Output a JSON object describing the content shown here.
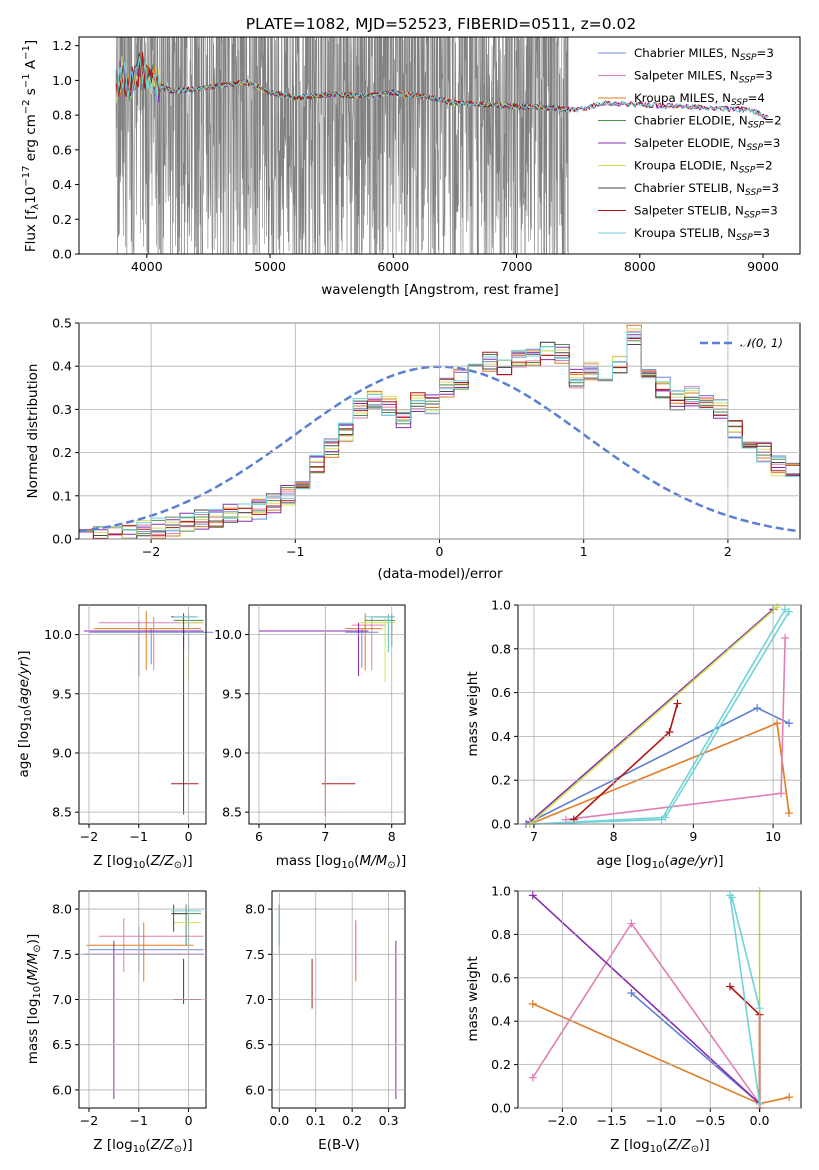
{
  "figure_title": "PLATE=1082, MJD=52523, FIBERID=0511, z=0.02",
  "colors": {
    "data": "#808080",
    "grid": "#b0b0b0",
    "models": [
      "#6e8ad8",
      "#e27eb4",
      "#e07b21",
      "#4f8f4f",
      "#8a2bb0",
      "#d4e05a",
      "#4a4a4a",
      "#b01616",
      "#6fd3d8"
    ],
    "gaussian": "#5b7fd4",
    "weights": [
      "#5b7fd4",
      "#e07b21",
      "#e27eb4",
      "#8a2bb0",
      "#c8e64f",
      "#b01616",
      "#6fd3d8"
    ]
  },
  "chart_data": [
    {
      "id": "spectrum",
      "type": "line",
      "ylabel": "Flux [f$_\\lambda$10$^{-17}$ erg cm$^{-2}$ s$^{-1}$ A$^{-1}$]",
      "ylabel_parts": [
        "Flux [f",
        "λ",
        "10",
        "−17",
        " erg cm",
        "−2",
        " s",
        "−1",
        " A",
        "−1",
        "]"
      ],
      "xlabel": "wavelength [Angstrom, rest frame]",
      "xlim": [
        3450,
        9300
      ],
      "ylim": [
        0,
        1.25
      ],
      "xticks": [
        4000,
        5000,
        6000,
        7000,
        8000,
        9000
      ],
      "yticks": [
        "0.0",
        "0.2",
        "0.4",
        "0.6",
        "0.8",
        "1.0",
        "1.2"
      ],
      "data_range": [
        3750,
        7420
      ],
      "model_continuum": [
        [
          3750,
          0.92
        ],
        [
          3800,
          1.05
        ],
        [
          3850,
          0.95
        ],
        [
          3900,
          1.0
        ],
        [
          3950,
          1.08
        ],
        [
          4000,
          1.02
        ],
        [
          4100,
          0.97
        ],
        [
          4200,
          0.94
        ],
        [
          4400,
          0.95
        ],
        [
          4600,
          0.97
        ],
        [
          4800,
          0.99
        ],
        [
          5000,
          0.93
        ],
        [
          5200,
          0.9
        ],
        [
          5500,
          0.92
        ],
        [
          5800,
          0.91
        ],
        [
          6000,
          0.93
        ],
        [
          6300,
          0.9
        ],
        [
          6500,
          0.87
        ],
        [
          6800,
          0.86
        ],
        [
          7000,
          0.85
        ],
        [
          7300,
          0.84
        ],
        [
          7500,
          0.83
        ],
        [
          7700,
          0.87
        ],
        [
          8000,
          0.86
        ],
        [
          8300,
          0.85
        ],
        [
          8600,
          0.84
        ],
        [
          8900,
          0.83
        ],
        [
          9050,
          0.78
        ]
      ],
      "legend": [
        {
          "label": "Chabrier MILES, N",
          "sub": "SSP",
          "suffix": "=3"
        },
        {
          "label": "Salpeter MILES, N",
          "sub": "SSP",
          "suffix": "=3"
        },
        {
          "label": "Kroupa MILES, N",
          "sub": "SSP",
          "suffix": "=4"
        },
        {
          "label": "Chabrier ELODIE, N",
          "sub": "SSP",
          "suffix": "=2"
        },
        {
          "label": "Salpeter ELODIE, N",
          "sub": "SSP",
          "suffix": "=3"
        },
        {
          "label": "Kroupa ELODIE, N",
          "sub": "SSP",
          "suffix": "=2"
        },
        {
          "label": "Chabrier STELIB, N",
          "sub": "SSP",
          "suffix": "=3"
        },
        {
          "label": "Salpeter STELIB, N",
          "sub": "SSP",
          "suffix": "=3"
        },
        {
          "label": "Kroupa STELIB, N",
          "sub": "SSP",
          "suffix": "=3"
        }
      ]
    },
    {
      "id": "residuals",
      "type": "step",
      "xlabel": "(data-model)/error",
      "ylabel": "Normed distribution",
      "xlim": [
        -2.5,
        2.5
      ],
      "ylim": [
        0,
        0.5
      ],
      "xticks": [
        "−2",
        "−1",
        "0",
        "1",
        "2"
      ],
      "xtick_values": [
        -2,
        -1,
        0,
        1,
        2
      ],
      "yticks": [
        "0.0",
        "0.1",
        "0.2",
        "0.3",
        "0.4",
        "0.5"
      ],
      "bin_width": 0.1,
      "bin_start": -2.5,
      "base_hist": [
        0.005,
        0.008,
        0.012,
        0.015,
        0.02,
        0.025,
        0.03,
        0.04,
        0.045,
        0.05,
        0.06,
        0.065,
        0.07,
        0.08,
        0.1,
        0.13,
        0.17,
        0.21,
        0.25,
        0.3,
        0.32,
        0.31,
        0.28,
        0.32,
        0.31,
        0.35,
        0.37,
        0.4,
        0.41,
        0.39,
        0.42,
        0.42,
        0.44,
        0.43,
        0.37,
        0.39,
        0.38,
        0.4,
        0.47,
        0.38,
        0.35,
        0.32,
        0.33,
        0.32,
        0.3,
        0.25,
        0.23,
        0.2,
        0.17,
        0.16,
        0.13,
        0.11,
        0.09,
        0.09,
        0.08,
        0.07,
        0.06,
        0.05,
        0.05,
        0.045,
        0.035,
        0.035,
        0.03,
        0.025,
        0.025,
        0.02,
        0.02,
        0.015,
        0.01,
        0.01,
        0.01,
        0.01,
        0.01,
        0.01,
        0.01,
        0.01,
        0.01,
        0.01,
        0.01,
        0.01
      ],
      "legend_label": "𝒩(0, 1)"
    },
    {
      "id": "age_vs_Z",
      "type": "errorbar",
      "xlabel_parts": [
        "Z [log",
        "10",
        "(",
        "Z/Z",
        "⊙",
        ")]"
      ],
      "ylabel_parts": [
        "age  [log",
        "10",
        "(",
        "age/yr",
        ")]"
      ],
      "xlim": [
        -2.2,
        0.35
      ],
      "ylim": [
        8.4,
        10.25
      ],
      "xticks": [
        "−2",
        "−1",
        "0"
      ],
      "xtick_values": [
        -2,
        -1,
        0
      ],
      "yticks": [
        "8.5",
        "9.0",
        "9.5",
        "10.0"
      ],
      "ytick_values": [
        8.5,
        9.0,
        9.5,
        10.0
      ],
      "points": [
        {
          "c": 0,
          "x": -0.75,
          "y": 10.02,
          "xe": [
            -2.0,
            0.5
          ],
          "ye": [
            9.75,
            10.05
          ]
        },
        {
          "c": 1,
          "x": -0.7,
          "y": 10.1,
          "xe": [
            -1.8,
            0.3
          ],
          "ye": [
            9.7,
            10.15
          ]
        },
        {
          "c": 2,
          "x": -0.85,
          "y": 10.05,
          "xe": [
            -1.9,
            0.25
          ],
          "ye": [
            9.7,
            10.2
          ]
        },
        {
          "c": 3,
          "x": 0.0,
          "y": 10.12,
          "xe": [
            -0.3,
            0.3
          ],
          "ye": [
            9.85,
            10.18
          ]
        },
        {
          "c": 4,
          "x": -1.0,
          "y": 10.03,
          "xe": [
            -2.1,
            0.3
          ],
          "ye": [
            9.65,
            10.12
          ]
        },
        {
          "c": 5,
          "x": 0.0,
          "y": 10.1,
          "xe": [
            -0.2,
            0.3
          ],
          "ye": [
            9.6,
            10.15
          ]
        },
        {
          "c": 6,
          "x": -0.1,
          "y": 10.15,
          "xe": [
            -0.35,
            0.15
          ],
          "ye": [
            9.9,
            10.18
          ]
        },
        {
          "c": 7,
          "x": -0.1,
          "y": 8.74,
          "xe": [
            -0.35,
            0.2
          ],
          "ye": [
            8.48,
            10.05
          ]
        },
        {
          "c": 8,
          "x": 0.0,
          "y": 10.15,
          "xe": [
            -0.3,
            0.2
          ],
          "ye": [
            9.85,
            10.17
          ]
        }
      ]
    },
    {
      "id": "age_vs_mass",
      "type": "errorbar",
      "xlabel_parts": [
        "mass [log",
        "10",
        "(",
        "M/M",
        "⊙",
        ")]"
      ],
      "xlim": [
        5.85,
        8.2
      ],
      "ylim": [
        8.4,
        10.25
      ],
      "xticks": [
        "6",
        "7",
        "8"
      ],
      "xtick_values": [
        6,
        7,
        8
      ],
      "yticks": [
        "8.5",
        "9.0",
        "9.5",
        "10.0"
      ],
      "ytick_values": [
        8.5,
        9.0,
        9.5,
        10.0
      ],
      "points": [
        {
          "c": 0,
          "x": 7.55,
          "y": 10.02,
          "xe": [
            7.3,
            7.8
          ],
          "ye": [
            9.72,
            10.05
          ]
        },
        {
          "c": 1,
          "x": 7.7,
          "y": 10.08,
          "xe": [
            7.4,
            7.9
          ],
          "ye": [
            9.7,
            10.15
          ]
        },
        {
          "c": 2,
          "x": 7.6,
          "y": 10.05,
          "xe": [
            7.3,
            7.85
          ],
          "ye": [
            9.7,
            10.18
          ]
        },
        {
          "c": 3,
          "x": 7.95,
          "y": 10.12,
          "xe": [
            7.6,
            8.05
          ],
          "ye": [
            9.85,
            10.17
          ]
        },
        {
          "c": 4,
          "x": 7.5,
          "y": 10.03,
          "xe": [
            6.0,
            7.65
          ],
          "ye": [
            9.65,
            10.1
          ]
        },
        {
          "c": 5,
          "x": 7.9,
          "y": 10.1,
          "xe": [
            7.5,
            8.05
          ],
          "ye": [
            9.6,
            10.15
          ]
        },
        {
          "c": 6,
          "x": 8.0,
          "y": 10.15,
          "xe": [
            7.7,
            8.05
          ],
          "ye": [
            9.9,
            10.17
          ]
        },
        {
          "c": 7,
          "x": 7.0,
          "y": 8.74,
          "xe": [
            6.95,
            7.45
          ],
          "ye": [
            8.47,
            10.02
          ]
        },
        {
          "c": 8,
          "x": 7.95,
          "y": 10.15,
          "xe": [
            7.6,
            8.05
          ],
          "ye": [
            9.85,
            10.16
          ]
        }
      ]
    },
    {
      "id": "weight_vs_age",
      "type": "line",
      "xlabel_parts": [
        "age  [log",
        "10",
        "(",
        "age/yr",
        ")]"
      ],
      "ylabel": "mass weight",
      "xlim": [
        6.8,
        10.35
      ],
      "ylim": [
        0,
        1
      ],
      "xticks": [
        "7",
        "8",
        "9",
        "10"
      ],
      "xtick_values": [
        7,
        8,
        9,
        10
      ],
      "yticks": [
        "0.0",
        "0.2",
        "0.4",
        "0.6",
        "0.8",
        "1.0"
      ],
      "ytick_values": [
        0,
        0.2,
        0.4,
        0.6,
        0.8,
        1.0
      ],
      "series": [
        {
          "c": 0,
          "x": [
            6.9,
            9.8,
            10.2
          ],
          "y": [
            0.0,
            0.53,
            0.46
          ]
        },
        {
          "c": 1,
          "x": [
            6.95,
            10.05,
            10.2
          ],
          "y": [
            0.0,
            0.46,
            0.05
          ]
        },
        {
          "c": 2,
          "x": [
            7.4,
            10.1,
            10.15
          ],
          "y": [
            0.02,
            0.14,
            0.85
          ]
        },
        {
          "c": 3,
          "x": [
            6.95,
            10.0
          ],
          "y": [
            0.01,
            0.98
          ]
        },
        {
          "c": 4,
          "x": [
            6.95,
            10.05
          ],
          "y": [
            0.0,
            0.99
          ]
        },
        {
          "c": 5,
          "x": [
            7.5,
            8.7,
            8.8
          ],
          "y": [
            0.02,
            0.42,
            0.55
          ]
        },
        {
          "c": 6,
          "x": [
            7.0,
            8.6,
            10.15
          ],
          "y": [
            0.0,
            0.02,
            0.98
          ]
        },
        {
          "c": 6,
          "x": [
            7.0,
            8.65,
            10.2
          ],
          "y": [
            0.0,
            0.03,
            0.97
          ]
        }
      ]
    },
    {
      "id": "mass_vs_Z",
      "type": "errorbar",
      "xlabel_parts": [
        "Z [log",
        "10",
        "(",
        "Z/Z",
        "⊙",
        ")]"
      ],
      "ylabel_parts": [
        "mass [log",
        "10",
        "(",
        "M/M",
        "⊙",
        ")]"
      ],
      "xlim": [
        -2.2,
        0.35
      ],
      "ylim": [
        5.8,
        8.2
      ],
      "xticks": [
        "−2",
        "−1",
        "0"
      ],
      "xtick_values": [
        -2,
        -1,
        0
      ],
      "yticks": [
        "6.0",
        "6.5",
        "7.0",
        "7.5",
        "8.0"
      ],
      "ytick_values": [
        6,
        6.5,
        7,
        7.5,
        8
      ],
      "points": [
        {
          "c": 0,
          "x": -1.0,
          "y": 7.55,
          "xe": [
            -2.0,
            0.3
          ],
          "ye": [
            7.3,
            7.8
          ]
        },
        {
          "c": 1,
          "x": -1.3,
          "y": 7.7,
          "xe": [
            -1.8,
            0.3
          ],
          "ye": [
            7.3,
            7.9
          ]
        },
        {
          "c": 2,
          "x": -0.9,
          "y": 7.6,
          "xe": [
            -2.05,
            0.1
          ],
          "ye": [
            7.2,
            7.85
          ]
        },
        {
          "c": 3,
          "x": -0.05,
          "y": 7.95,
          "xe": [
            -0.3,
            0.25
          ],
          "ye": [
            7.6,
            8.05
          ]
        },
        {
          "c": 4,
          "x": -1.5,
          "y": 7.5,
          "xe": [
            -2.1,
            0.3
          ],
          "ye": [
            5.9,
            7.65
          ]
        },
        {
          "c": 5,
          "x": 0.0,
          "y": 7.85,
          "xe": [
            -0.3,
            0.25
          ],
          "ye": [
            7.5,
            8.05
          ]
        },
        {
          "c": 6,
          "x": -0.3,
          "y": 7.95,
          "xe": [
            -0.35,
            0.0
          ],
          "ye": [
            7.75,
            8.05
          ]
        },
        {
          "c": 7,
          "x": -0.1,
          "y": 7.0,
          "xe": [
            -0.3,
            0.25
          ],
          "ye": [
            6.95,
            7.45
          ]
        },
        {
          "c": 8,
          "x": 0.0,
          "y": 7.98,
          "xe": [
            -0.35,
            0.25
          ],
          "ye": [
            7.6,
            8.05
          ]
        }
      ]
    },
    {
      "id": "mass_vs_ebv",
      "type": "errorbar",
      "xlabel": "E(B-V)",
      "xlim": [
        -0.02,
        0.345
      ],
      "ylim": [
        5.8,
        8.2
      ],
      "xticks": [
        "0.0",
        "0.1",
        "0.2",
        "0.3"
      ],
      "xtick_values": [
        0,
        0.1,
        0.2,
        0.3
      ],
      "yticks": [
        "6.0",
        "6.5",
        "7.0",
        "7.5",
        "8.0"
      ],
      "ytick_values": [
        6,
        6.5,
        7,
        7.5,
        8
      ],
      "points": [
        {
          "c": 8,
          "x": 0.0,
          "y": 7.8,
          "xe": [
            0.0,
            0.0
          ],
          "ye": [
            7.5,
            8.05
          ]
        },
        {
          "c": 3,
          "x": 0.0,
          "y": 7.9,
          "xe": [
            0.0,
            0.0
          ],
          "ye": [
            7.6,
            8.05
          ]
        },
        {
          "c": 7,
          "x": 0.09,
          "y": 7.2,
          "xe": [
            0.09,
            0.09
          ],
          "ye": [
            6.9,
            7.45
          ]
        },
        {
          "c": 2,
          "x": 0.21,
          "y": 7.5,
          "xe": [
            0.21,
            0.21
          ],
          "ye": [
            7.2,
            7.85
          ]
        },
        {
          "c": 1,
          "x": 0.21,
          "y": 7.6,
          "xe": [
            0.21,
            0.21
          ],
          "ye": [
            7.3,
            7.88
          ]
        },
        {
          "c": 4,
          "x": 0.32,
          "y": 6.8,
          "xe": [
            0.32,
            0.32
          ],
          "ye": [
            5.9,
            7.65
          ]
        }
      ]
    },
    {
      "id": "weight_vs_Z",
      "type": "line",
      "xlabel_parts": [
        "Z [log",
        "10",
        "(",
        "Z/Z",
        "⊙",
        ")]"
      ],
      "ylabel": "mass weight",
      "xlim": [
        -2.45,
        0.42
      ],
      "ylim": [
        0,
        1
      ],
      "xticks": [
        "−2.0",
        "−1.5",
        "−1.0",
        "−0.5",
        "0.0"
      ],
      "xtick_values": [
        -2.0,
        -1.5,
        -1.0,
        -0.5,
        0.0
      ],
      "yticks": [
        "0.0",
        "0.2",
        "0.4",
        "0.6",
        "0.8",
        "1.0"
      ],
      "ytick_values": [
        0,
        0.2,
        0.4,
        0.6,
        0.8,
        1.0
      ],
      "series": [
        {
          "c": 0,
          "x": [
            -1.3,
            0.0
          ],
          "y": [
            0.53,
            0.02
          ]
        },
        {
          "c": 1,
          "x": [
            -2.3,
            0.0,
            0.3
          ],
          "y": [
            0.48,
            0.02,
            0.05
          ]
        },
        {
          "c": 2,
          "x": [
            -2.3,
            -1.3,
            0.0
          ],
          "y": [
            0.14,
            0.85,
            0.02
          ]
        },
        {
          "c": 3,
          "x": [
            -2.3,
            0.0
          ],
          "y": [
            0.98,
            0.02
          ]
        },
        {
          "c": 4,
          "x": [
            0.0,
            0.0
          ],
          "y": [
            1.0,
            0.02
          ]
        },
        {
          "c": 5,
          "x": [
            -0.3,
            0.0,
            0.0
          ],
          "y": [
            0.56,
            0.43,
            0.0
          ]
        },
        {
          "c": 6,
          "x": [
            -0.3,
            0.0
          ],
          "y": [
            0.98,
            0.02
          ]
        },
        {
          "c": 6,
          "x": [
            -0.28,
            0.0
          ],
          "y": [
            0.97,
            0.46
          ]
        }
      ]
    }
  ]
}
